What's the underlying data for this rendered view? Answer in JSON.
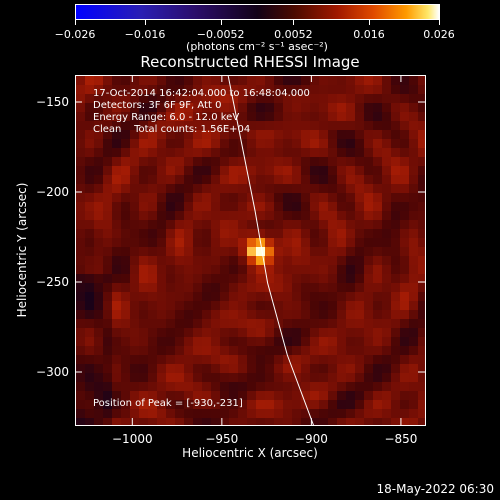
{
  "colorbar": {
    "ticks": [
      "−0.026",
      "−0.016",
      "−0.0052",
      "0.0052",
      "0.016",
      "0.026"
    ],
    "tick_values": [
      -0.026,
      -0.016,
      -0.0052,
      0.0052,
      0.016,
      0.026
    ],
    "units": "(photons cm⁻² s⁻¹ asec⁻²)"
  },
  "header": {
    "title": "Reconstructed RHESSI Image"
  },
  "info": {
    "time_range": "17-Oct-2014 16:42:04.000 to 16:48:04.000",
    "detectors": "Detectors: 3F 6F 9F, Att 0",
    "energy": "Energy Range: 6.0 - 12.0 keV",
    "clean": "Clean    Total counts: 1.56E+04",
    "peak": "Position of Peak = [-930,-231]"
  },
  "chart_data": {
    "type": "heatmap",
    "title": "Reconstructed RHESSI Image",
    "xlabel": "Heliocentric X (arcsec)",
    "ylabel": "Heliocentric Y (arcsec)",
    "xlim": [
      -1032,
      -836
    ],
    "ylim": [
      -330,
      -135
    ],
    "x_ticks": [
      -1000,
      -950,
      -900,
      -850
    ],
    "y_ticks": [
      -150,
      -200,
      -250,
      -300
    ],
    "x_tick_labels": [
      "−1000",
      "−950",
      "−900",
      "−850"
    ],
    "y_tick_labels": [
      "−150",
      "−200",
      "−250",
      "−300"
    ],
    "peak": {
      "x": -930,
      "y": -231
    },
    "limb_points": [
      [
        -947,
        -135
      ],
      [
        -940,
        -170
      ],
      [
        -932,
        -210
      ],
      [
        -925,
        -250
      ],
      [
        -914,
        -290
      ],
      [
        -899,
        -330
      ]
    ],
    "colormap": [
      "#0000ff",
      "#2b0d6a",
      "#120217",
      "#a01800",
      "#ff9a00",
      "#ffffff"
    ]
  },
  "footer": {
    "timestamp": "18-May-2022 06:30"
  }
}
